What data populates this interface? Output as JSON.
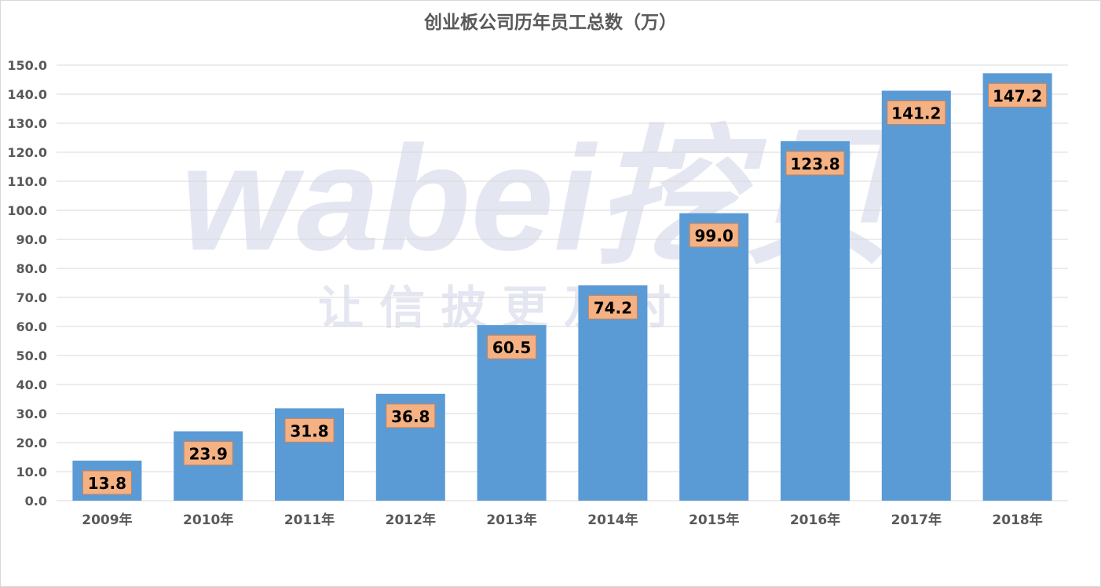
{
  "chart_data": {
    "type": "bar",
    "title": "创业板公司历年员工总数（万）",
    "categories": [
      "2009年",
      "2010年",
      "2011年",
      "2012年",
      "2013年",
      "2014年",
      "2015年",
      "2016年",
      "2017年",
      "2018年"
    ],
    "values": [
      13.8,
      23.9,
      31.8,
      36.8,
      60.5,
      74.2,
      99.0,
      123.8,
      141.2,
      147.2
    ],
    "data_labels": [
      "13.8",
      "23.9",
      "31.8",
      "36.8",
      "60.5",
      "74.2",
      "99.0",
      "123.8",
      "141.2",
      "147.2"
    ],
    "xlabel": "",
    "ylabel": "",
    "ylim": [
      0,
      150
    ],
    "yticks": [
      "0.0",
      "10.0",
      "20.0",
      "30.0",
      "40.0",
      "50.0",
      "60.0",
      "70.0",
      "80.0",
      "90.0",
      "100.0",
      "110.0",
      "120.0",
      "130.0",
      "140.0",
      "150.0"
    ],
    "grid": true,
    "legend": "none",
    "colors": {
      "bar": "#5B9BD5",
      "label_bg": "#F4B183",
      "label_border": "#C9825A",
      "grid": "#D9D9D9",
      "text": "#595959"
    }
  },
  "watermark": {
    "logo": "wabei挖贝",
    "slogan": "让 信 披 更 及 时"
  }
}
